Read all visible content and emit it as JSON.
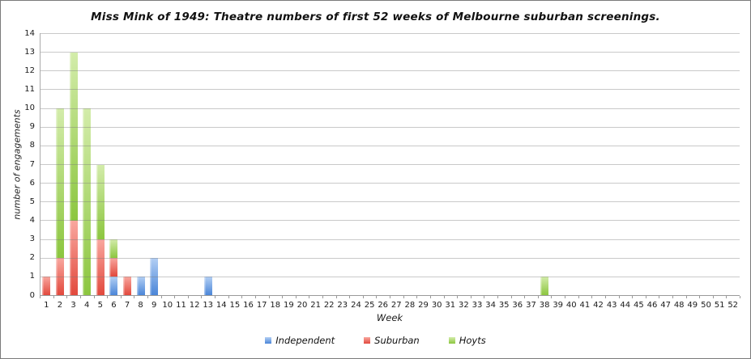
{
  "chart_data": {
    "type": "stacked-bar",
    "title": "Miss Mink of 1949: Theatre numbers of first 52 weeks of Melbourne suburban screenings.",
    "xlabel": "Week",
    "ylabel": "number of engagements",
    "x_axis": {
      "min": 1,
      "max": 52,
      "step": 1
    },
    "y_axis": {
      "min": 0,
      "max": 14,
      "step": 1
    },
    "ylim": [
      0,
      14
    ],
    "grid": true,
    "legend_position": "bottom",
    "stack_order_bottom_to_top": [
      "Independent",
      "Suburban",
      "Hoyts"
    ],
    "series": [
      {
        "name": "Independent",
        "fill_light": "#b3cff4",
        "fill_dark": "#4b86d8",
        "values": [
          0,
          0,
          0,
          0,
          0,
          1,
          0,
          1,
          2,
          0,
          0,
          0,
          1,
          0,
          0,
          0,
          0,
          0,
          0,
          0,
          0,
          0,
          0,
          0,
          0,
          0,
          0,
          0,
          0,
          0,
          0,
          0,
          0,
          0,
          0,
          0,
          0,
          0,
          0,
          0,
          0,
          0,
          0,
          0,
          0,
          0,
          0,
          0,
          0,
          0,
          0,
          0
        ]
      },
      {
        "name": "Suburban",
        "fill_light": "#f9a79f",
        "fill_dark": "#e2493d",
        "values": [
          1,
          2,
          4,
          0,
          3,
          1,
          1,
          0,
          0,
          0,
          0,
          0,
          0,
          0,
          0,
          0,
          0,
          0,
          0,
          0,
          0,
          0,
          0,
          0,
          0,
          0,
          0,
          0,
          0,
          0,
          0,
          0,
          0,
          0,
          0,
          0,
          0,
          0,
          0,
          0,
          0,
          0,
          0,
          0,
          0,
          0,
          0,
          0,
          0,
          0,
          0,
          0
        ]
      },
      {
        "name": "Hoyts",
        "fill_light": "#d3ecaa",
        "fill_dark": "#8cc63f",
        "values": [
          0,
          8,
          9,
          10,
          4,
          1,
          0,
          0,
          0,
          0,
          0,
          0,
          0,
          0,
          0,
          0,
          0,
          0,
          0,
          0,
          0,
          0,
          0,
          0,
          0,
          0,
          0,
          0,
          0,
          0,
          0,
          0,
          0,
          0,
          0,
          0,
          0,
          1,
          0,
          0,
          0,
          0,
          0,
          0,
          0,
          0,
          0,
          0,
          0,
          0,
          0,
          0
        ]
      }
    ],
    "weekly_totals_nonzero": {
      "1": 1,
      "2": 10,
      "3": 13,
      "4": 10,
      "5": 7,
      "6": 3,
      "7": 1,
      "8": 1,
      "9": 2,
      "13": 1,
      "38": 1
    }
  }
}
